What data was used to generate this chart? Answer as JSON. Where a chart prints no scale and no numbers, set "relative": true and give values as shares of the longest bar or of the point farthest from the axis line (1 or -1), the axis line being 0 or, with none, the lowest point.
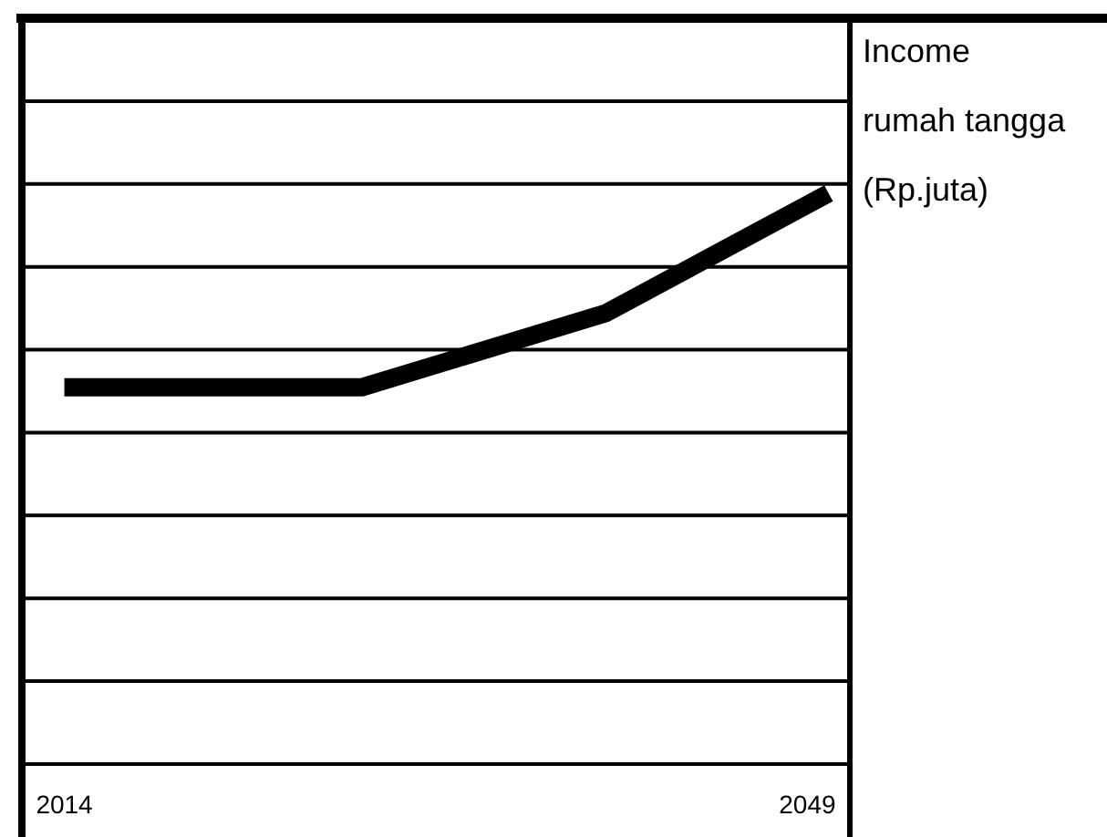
{
  "chart_data": {
    "type": "line",
    "ylabel": "Income\nrumah tangga\n(Rp.juta)",
    "x": [
      2014,
      2028,
      2039.5,
      2050
    ],
    "xlim": [
      2012,
      2051
    ],
    "xticks": [
      2014,
      2049
    ],
    "relative": true,
    "grid": "y",
    "series": [
      {
        "color": "#000000",
        "values": [
          0.66,
          0.66,
          0.79,
          1
        ]
      }
    ]
  }
}
